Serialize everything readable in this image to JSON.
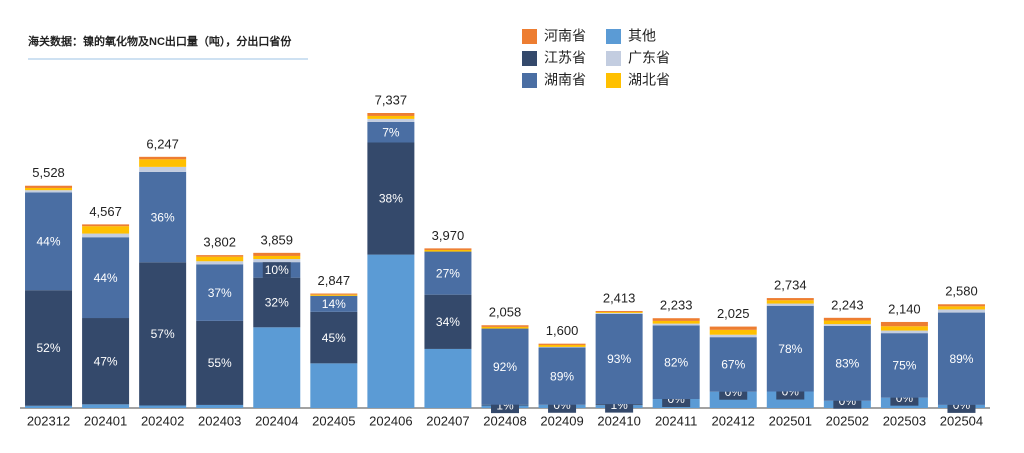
{
  "chart_data": {
    "type": "bar",
    "stacked": true,
    "title": "海关数据：镍的氧化物及NC出口量（吨），分出口省份",
    "categories": [
      "202312",
      "202401",
      "202402",
      "202403",
      "202404",
      "202405",
      "202406",
      "202407",
      "202408",
      "202409",
      "202410",
      "202411",
      "202412",
      "202501",
      "202502",
      "202503",
      "202504"
    ],
    "totals": {
      "values": [
        5528,
        4567,
        6247,
        3802,
        3859,
        2847,
        7337,
        3970,
        2058,
        1600,
        2413,
        2233,
        2025,
        2734,
        2243,
        2140,
        2580
      ],
      "value_labels": [
        "5,528",
        "4,567",
        "6,247",
        "3,802",
        "3,859",
        "2,847",
        "7,337",
        "3,970",
        "2,058",
        "1,600",
        "2,413",
        "2,233",
        "2,025",
        "2,734",
        "2,243",
        "2,140",
        "2,580"
      ]
    },
    "series": [
      {
        "name": "其他",
        "color": "#5b9bd5",
        "values": [
          1,
          2,
          1,
          2,
          52,
          39,
          52,
          37,
          3,
          5,
          3,
          10,
          20,
          15,
          8,
          12,
          3
        ]
      },
      {
        "name": "江苏省",
        "color": "#34496b",
        "values": [
          52,
          47,
          57,
          55,
          32,
          45,
          38,
          34,
          1,
          0,
          1,
          0,
          0,
          0,
          0,
          0,
          0
        ],
        "value_labels": [
          "52%",
          "47%",
          "57%",
          "55%",
          "32%",
          "45%",
          "38%",
          "34%",
          "1%",
          "0%",
          "1%",
          "0%",
          "0%",
          "0%",
          "0%",
          "0%",
          "0%"
        ]
      },
      {
        "name": "湖南省",
        "color": "#4a6ea3",
        "values": [
          44,
          44,
          36,
          37,
          10,
          14,
          7,
          27,
          92,
          89,
          93,
          82,
          67,
          78,
          83,
          75,
          89
        ],
        "value_labels": [
          "44%",
          "44%",
          "36%",
          "37%",
          "10%",
          "14%",
          "7%",
          "27%",
          "92%",
          "89%",
          "93%",
          "82%",
          "67%",
          "78%",
          "83%",
          "75%",
          "89%"
        ]
      },
      {
        "name": "广东省",
        "color": "#c3cde0",
        "values": [
          1,
          2,
          2,
          2,
          2,
          0,
          1,
          0,
          0,
          1,
          1,
          2,
          3,
          2,
          2,
          3,
          3
        ]
      },
      {
        "name": "湖北省",
        "color": "#ffc000",
        "values": [
          1,
          4,
          3,
          3,
          2,
          1,
          1,
          1,
          2,
          3,
          1,
          3,
          6,
          3,
          4,
          5,
          3
        ]
      },
      {
        "name": "河南省",
        "color": "#ed7d31",
        "values": [
          1,
          1,
          1,
          1,
          2,
          1,
          1,
          1,
          2,
          2,
          1,
          3,
          4,
          2,
          3,
          5,
          2
        ]
      }
    ],
    "legend": "top"
  }
}
